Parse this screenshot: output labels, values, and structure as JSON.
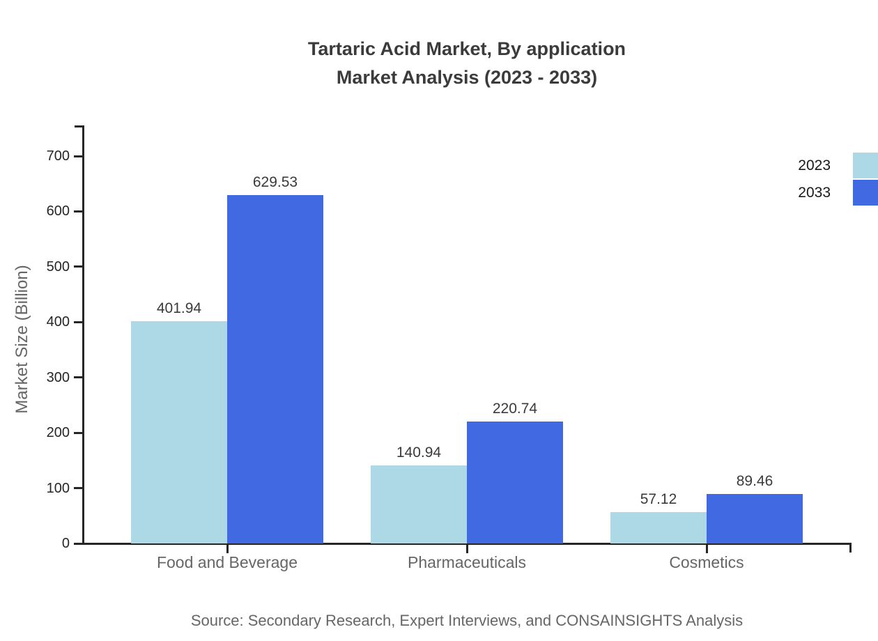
{
  "chart_data": {
    "type": "bar",
    "title": "Tartaric Acid Market, By application",
    "subtitle": "Market Analysis (2023 - 2033)",
    "ylabel": "Market Size (Billion)",
    "xlabel": "",
    "source": "Source: Secondary Research, Expert Interviews, and CONSAINSIGHTS Analysis",
    "categories": [
      "Food and Beverage",
      "Pharmaceuticals",
      "Cosmetics"
    ],
    "series": [
      {
        "name": "2023",
        "color": "#ADD8E6",
        "values": [
          401.94,
          140.94,
          57.12
        ]
      },
      {
        "name": "2033",
        "color": "#4169E1",
        "values": [
          629.53,
          220.74,
          89.46
        ]
      }
    ],
    "ylim": [
      0,
      700
    ],
    "yticks": [
      0,
      100,
      200,
      300,
      400,
      500,
      600,
      700
    ],
    "grid": false,
    "legend_position": "top-right",
    "value_labels": true,
    "colors": {
      "axis": "#262626",
      "title_text": "#3b3b3b",
      "muted_text": "#666666",
      "value_text": "#3a3a3a",
      "legend_text": "#1a1a1a",
      "background": "#ffffff"
    }
  }
}
